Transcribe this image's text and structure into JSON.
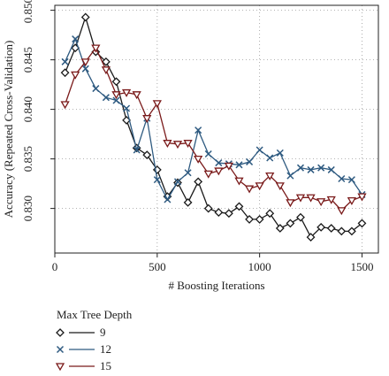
{
  "chart_data": {
    "type": "line",
    "xlabel": "# Boosting Iterations",
    "ylabel": "Accuracy (Repeated Cross-Validation)",
    "xlim": [
      0,
      1580
    ],
    "ylim": [
      0.8255,
      0.8505
    ],
    "xticks": [
      0,
      500,
      1000,
      1500
    ],
    "xtick_labels": [
      "0",
      "500",
      "1000",
      "1500"
    ],
    "yticks": [
      0.83,
      0.835,
      0.84,
      0.845,
      0.85
    ],
    "ytick_labels": [
      "0.830",
      "0.835",
      "0.840",
      "0.845",
      "0.850"
    ],
    "grid": true,
    "legend": {
      "title": "Max Tree Depth",
      "placement": "bottom-left"
    },
    "x": [
      50,
      100,
      150,
      200,
      250,
      300,
      350,
      400,
      450,
      500,
      550,
      600,
      650,
      700,
      750,
      800,
      850,
      900,
      950,
      1000,
      1050,
      1100,
      1150,
      1200,
      1250,
      1300,
      1350,
      1400,
      1450,
      1500
    ],
    "series": [
      {
        "name": "9",
        "color": "#1a1a1a",
        "marker": "diamond",
        "values": [
          0.8437,
          0.8462,
          0.8493,
          0.8458,
          0.8448,
          0.8428,
          0.8389,
          0.8361,
          0.8354,
          0.8339,
          0.8312,
          0.8326,
          0.8306,
          0.8327,
          0.83,
          0.8296,
          0.8295,
          0.8302,
          0.8289,
          0.8289,
          0.8295,
          0.828,
          0.8285,
          0.8291,
          0.8271,
          0.8281,
          0.828,
          0.8277,
          0.8277,
          0.8285
        ]
      },
      {
        "name": "12",
        "color": "#2e5a80",
        "marker": "x",
        "values": [
          0.8448,
          0.8471,
          0.8441,
          0.8421,
          0.8412,
          0.8409,
          0.8401,
          0.8359,
          0.8391,
          0.8329,
          0.8309,
          0.8327,
          0.8336,
          0.8379,
          0.8355,
          0.8346,
          0.8345,
          0.8344,
          0.8347,
          0.8359,
          0.8351,
          0.8356,
          0.8333,
          0.8341,
          0.8339,
          0.8341,
          0.8339,
          0.833,
          0.8329,
          0.8314
        ]
      },
      {
        "name": "15",
        "color": "#7a1a1a",
        "marker": "triangle-down",
        "values": [
          0.8405,
          0.8435,
          0.8448,
          0.8462,
          0.844,
          0.8415,
          0.8417,
          0.8415,
          0.8391,
          0.8406,
          0.8366,
          0.8365,
          0.8366,
          0.835,
          0.8335,
          0.8338,
          0.8343,
          0.8328,
          0.832,
          0.8323,
          0.8333,
          0.8323,
          0.8306,
          0.8311,
          0.8311,
          0.8307,
          0.8309,
          0.8298,
          0.8308,
          0.8312
        ]
      }
    ]
  }
}
